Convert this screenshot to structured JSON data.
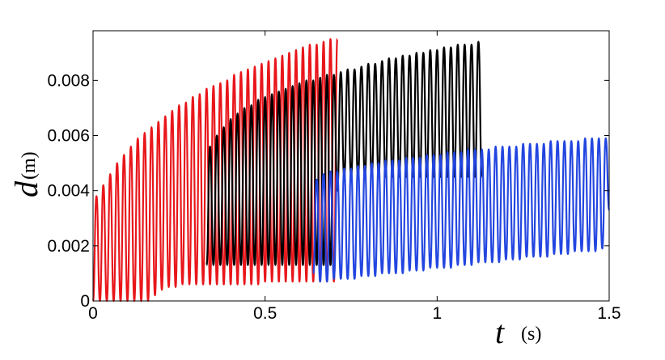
{
  "chart_data": {
    "type": "line",
    "xlabel": {
      "symbol": "t",
      "unit": "(s)"
    },
    "ylabel": {
      "symbol": "d",
      "unit": "(m)"
    },
    "xlim": [
      0,
      1.5
    ],
    "xticks": [
      0,
      0.5,
      1,
      1.5
    ],
    "ylim": [
      0,
      0.0098
    ],
    "yticks": [
      0,
      0.002,
      0.004,
      0.006,
      0.008
    ],
    "grid": false,
    "series": [
      {
        "color": "#e8161b",
        "x": [
          0,
          0.01,
          0.02,
          0.03,
          0.04,
          0.05,
          0.06,
          0.07,
          0.08,
          0.09,
          0.1,
          0.11,
          0.12,
          0.13,
          0.14,
          0.15,
          0.16,
          0.17,
          0.18,
          0.19,
          0.2,
          0.21,
          0.22,
          0.23,
          0.24,
          0.25,
          0.26,
          0.27,
          0.28,
          0.29,
          0.3,
          0.31,
          0.32,
          0.33,
          0.34,
          0.35,
          0.36,
          0.37,
          0.38,
          0.39,
          0.4,
          0.41,
          0.42,
          0.43,
          0.44,
          0.45,
          0.46,
          0.47,
          0.48,
          0.49,
          0.5,
          0.51,
          0.52,
          0.53,
          0.54,
          0.55,
          0.56,
          0.57,
          0.58,
          0.59,
          0.6,
          0.61,
          0.62,
          0.63,
          0.64,
          0.65,
          0.66,
          0.67,
          0.68,
          0.69,
          0.7,
          0.71
        ],
        "values": [
          0,
          0.0038,
          0,
          0.0042,
          0,
          0.0046,
          0,
          0.005,
          0,
          0.0053,
          0,
          0.0056,
          0,
          0.0059,
          0,
          0.0061,
          0,
          0.0063,
          0.0002,
          0.0065,
          0.0004,
          0.0067,
          0.0005,
          0.0069,
          0.0005,
          0.0071,
          0.0006,
          0.0072,
          0.0006,
          0.0074,
          0.0006,
          0.0075,
          0.0006,
          0.0077,
          0.0006,
          0.0078,
          0.0006,
          0.0079,
          0.0006,
          0.008,
          0.0006,
          0.0082,
          0.0006,
          0.0083,
          0.0006,
          0.0084,
          0.0006,
          0.0085,
          0.0006,
          0.0086,
          0.0007,
          0.0087,
          0.0007,
          0.0088,
          0.0007,
          0.0089,
          0.0007,
          0.009,
          0.0007,
          0.0091,
          0.0007,
          0.0092,
          0.0007,
          0.0093,
          0.0007,
          0.0093,
          0.0007,
          0.0094,
          0.0007,
          0.0095,
          0.0007,
          0.0095
        ]
      },
      {
        "color": "#000000",
        "x": [
          0.33,
          0.34,
          0.35,
          0.36,
          0.37,
          0.38,
          0.39,
          0.4,
          0.41,
          0.42,
          0.43,
          0.44,
          0.45,
          0.46,
          0.47,
          0.48,
          0.49,
          0.5,
          0.51,
          0.52,
          0.53,
          0.54,
          0.55,
          0.56,
          0.57,
          0.58,
          0.59,
          0.6,
          0.61,
          0.62,
          0.63,
          0.64,
          0.65,
          0.66,
          0.67,
          0.68,
          0.69,
          0.7,
          0.71,
          0.72,
          0.73,
          0.74,
          0.75,
          0.76,
          0.77,
          0.78,
          0.79,
          0.8,
          0.81,
          0.82,
          0.83,
          0.84,
          0.85,
          0.86,
          0.87,
          0.88,
          0.89,
          0.9,
          0.91,
          0.92,
          0.93,
          0.94,
          0.95,
          0.96,
          0.97,
          0.98,
          0.99,
          1,
          1.01,
          1.02,
          1.03,
          1.04,
          1.05,
          1.06,
          1.07,
          1.08,
          1.09,
          1.1,
          1.11,
          1.12,
          1.13
        ],
        "values": [
          0.0013,
          0.0056,
          0.0013,
          0.006,
          0.0013,
          0.0063,
          0.0013,
          0.0066,
          0.0013,
          0.0068,
          0.0013,
          0.007,
          0.0013,
          0.0071,
          0.0013,
          0.0073,
          0.0013,
          0.0074,
          0.0013,
          0.0075,
          0.0013,
          0.0076,
          0.0013,
          0.0077,
          0.0013,
          0.0078,
          0.0013,
          0.0079,
          0.0013,
          0.008,
          0.0013,
          0.008,
          0.0013,
          0.0081,
          0.0013,
          0.0082,
          0.0013,
          0.0082,
          0.004,
          0.0083,
          0.0045,
          0.0084,
          0.0045,
          0.0084,
          0.0045,
          0.0085,
          0.0045,
          0.0086,
          0.0045,
          0.0086,
          0.0045,
          0.0087,
          0.0045,
          0.0088,
          0.0045,
          0.0088,
          0.0045,
          0.0089,
          0.0045,
          0.0089,
          0.0045,
          0.009,
          0.0045,
          0.009,
          0.0045,
          0.0091,
          0.0045,
          0.0091,
          0.0045,
          0.0092,
          0.0045,
          0.0092,
          0.0045,
          0.0093,
          0.0045,
          0.0093,
          0.0045,
          0.0093,
          0.0045,
          0.0094,
          0.0045
        ]
      },
      {
        "color": "#2346e0",
        "x": [
          0.64,
          0.65,
          0.66,
          0.67,
          0.68,
          0.69,
          0.7,
          0.71,
          0.72,
          0.73,
          0.74,
          0.75,
          0.76,
          0.77,
          0.78,
          0.79,
          0.8,
          0.81,
          0.82,
          0.83,
          0.84,
          0.85,
          0.86,
          0.87,
          0.88,
          0.89,
          0.9,
          0.91,
          0.92,
          0.93,
          0.94,
          0.95,
          0.96,
          0.97,
          0.98,
          0.99,
          1,
          1.01,
          1.02,
          1.03,
          1.04,
          1.05,
          1.06,
          1.07,
          1.08,
          1.09,
          1.1,
          1.11,
          1.12,
          1.13,
          1.14,
          1.15,
          1.16,
          1.17,
          1.18,
          1.19,
          1.2,
          1.21,
          1.22,
          1.23,
          1.24,
          1.25,
          1.26,
          1.27,
          1.28,
          1.29,
          1.3,
          1.31,
          1.32,
          1.33,
          1.34,
          1.35,
          1.36,
          1.37,
          1.38,
          1.39,
          1.4,
          1.41,
          1.42,
          1.43,
          1.44,
          1.45,
          1.46,
          1.47,
          1.48,
          1.49,
          1.5
        ],
        "values": [
          0.001,
          0.0044,
          0.0007,
          0.0046,
          0.0007,
          0.0047,
          0.0008,
          0.0047,
          0.0008,
          0.0048,
          0.0008,
          0.0048,
          0.0008,
          0.0049,
          0.0009,
          0.0049,
          0.0009,
          0.005,
          0.0009,
          0.005,
          0.001,
          0.0051,
          0.001,
          0.0051,
          0.001,
          0.0051,
          0.001,
          0.0052,
          0.0011,
          0.0052,
          0.0011,
          0.0052,
          0.0011,
          0.0053,
          0.0012,
          0.0053,
          0.0012,
          0.0053,
          0.0012,
          0.0054,
          0.0012,
          0.0054,
          0.0013,
          0.0054,
          0.0013,
          0.0055,
          0.0013,
          0.0055,
          0.0014,
          0.0055,
          0.0014,
          0.0055,
          0.0014,
          0.0056,
          0.0014,
          0.0056,
          0.0015,
          0.0056,
          0.0015,
          0.0056,
          0.0015,
          0.0057,
          0.0016,
          0.0057,
          0.0016,
          0.0057,
          0.0016,
          0.0057,
          0.0016,
          0.0058,
          0.0017,
          0.0058,
          0.0017,
          0.0058,
          0.0017,
          0.0058,
          0.0018,
          0.0058,
          0.0018,
          0.0059,
          0.0018,
          0.0059,
          0.0018,
          0.0059,
          0.0019,
          0.0059,
          0.0033
        ]
      }
    ]
  }
}
